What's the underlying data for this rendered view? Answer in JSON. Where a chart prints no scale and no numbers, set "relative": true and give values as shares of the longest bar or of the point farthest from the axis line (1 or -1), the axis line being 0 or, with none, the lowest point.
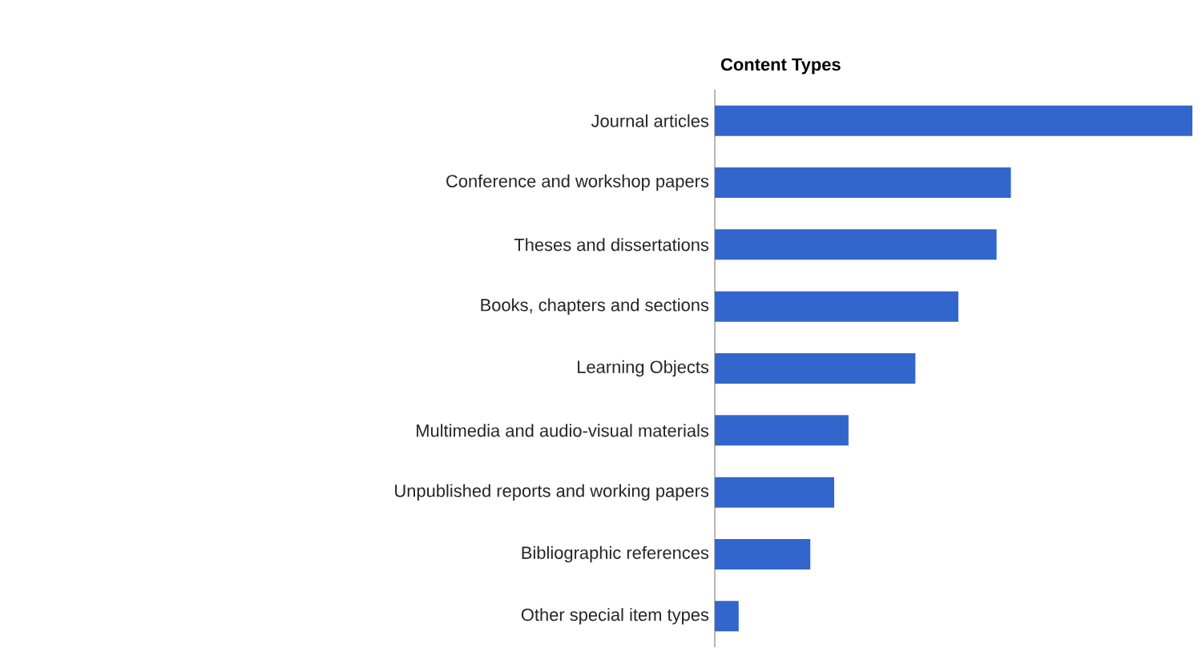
{
  "chart_data": {
    "type": "bar",
    "orientation": "horizontal",
    "relative": true,
    "title": "Content Types",
    "categories": [
      "Journal articles",
      "Conference and workshop papers",
      "Theses and dissertations",
      "Books, chapters and sections",
      "Learning Objects",
      "Multimedia and audio-visual materials",
      "Unpublished reports and working papers",
      "Bibliographic references",
      "Other special item types"
    ],
    "values": [
      1,
      0.62,
      0.59,
      0.51,
      0.42,
      0.28,
      0.25,
      0.2,
      0.05
    ],
    "color": "#3366cc"
  }
}
